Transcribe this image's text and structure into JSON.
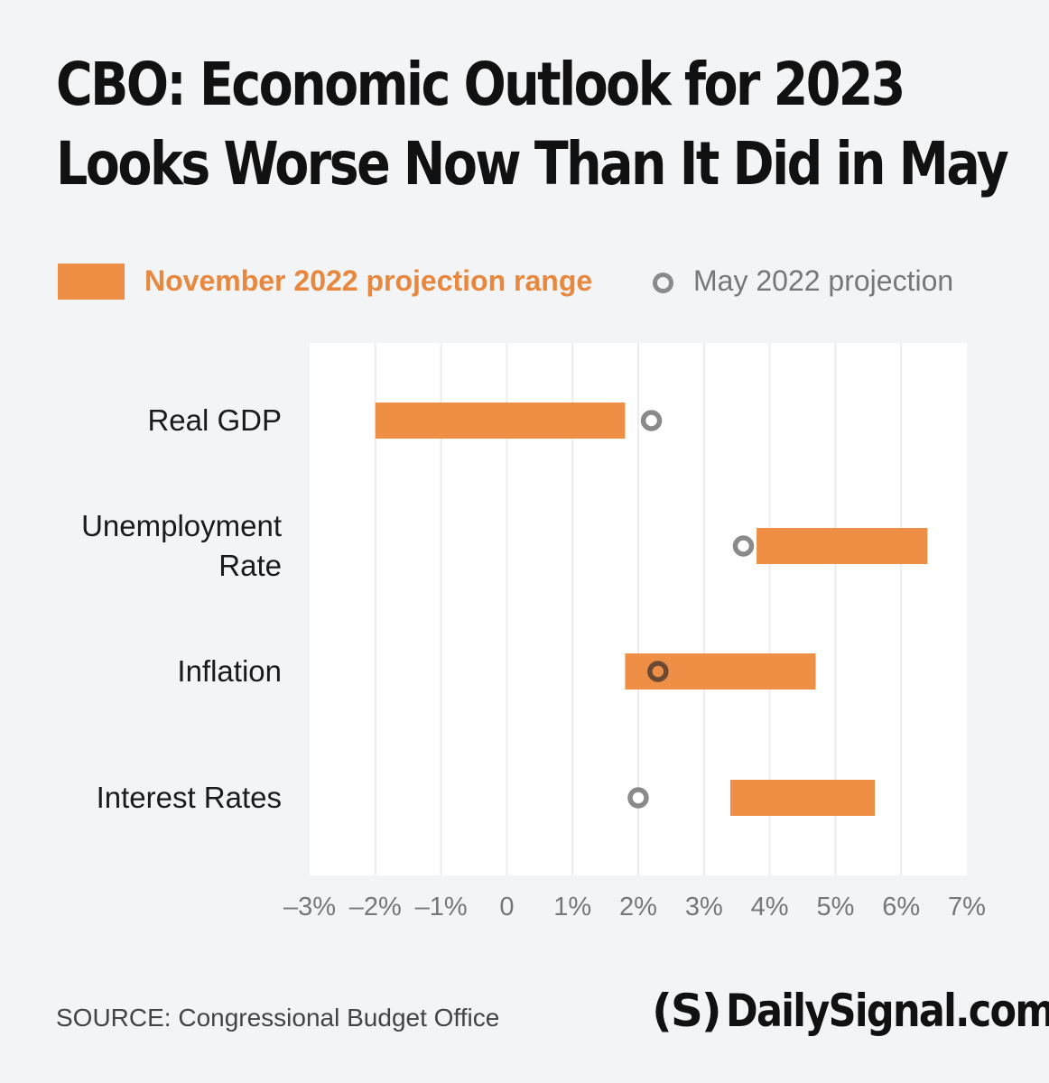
{
  "title_line1": "CBO: Economic Outlook for 2023",
  "title_line2": "Looks Worse Now Than It Did in May",
  "legend": {
    "range_label": "November 2022 projection range",
    "point_label": "May 2022 projection"
  },
  "colors": {
    "range": "#ef8f45",
    "point": "#8a8a8a",
    "point_on_range": "#6b4a33",
    "grid": "#ececec"
  },
  "chart_data": {
    "type": "range-dot",
    "title": "CBO: Economic Outlook for 2023 Looks Worse Now Than It Did in May",
    "categories": [
      "Real GDP",
      "Unemployment\nRate",
      "Inflation",
      "Interest Rates"
    ],
    "series": [
      {
        "name": "November 2022 projection range",
        "ranges": [
          [
            -2.0,
            1.8
          ],
          [
            3.8,
            6.4
          ],
          [
            1.8,
            4.7
          ],
          [
            3.4,
            5.6
          ]
        ]
      },
      {
        "name": "May 2022 projection",
        "values": [
          2.2,
          3.6,
          2.3,
          2.0
        ]
      }
    ],
    "xlim": [
      -3,
      7
    ],
    "x_ticks": [
      -3,
      -2,
      -1,
      0,
      1,
      2,
      3,
      4,
      5,
      6,
      7
    ],
    "x_tick_labels": [
      "–3%",
      "–2%",
      "–1%",
      "0",
      "1%",
      "2%",
      "3%",
      "4%",
      "5%",
      "6%",
      "7%"
    ],
    "grid": true,
    "legend_position": "top"
  },
  "source": "SOURCE: Congressional Budget Office",
  "brand": {
    "logo": "(S)",
    "text": "DailySignal.com"
  }
}
